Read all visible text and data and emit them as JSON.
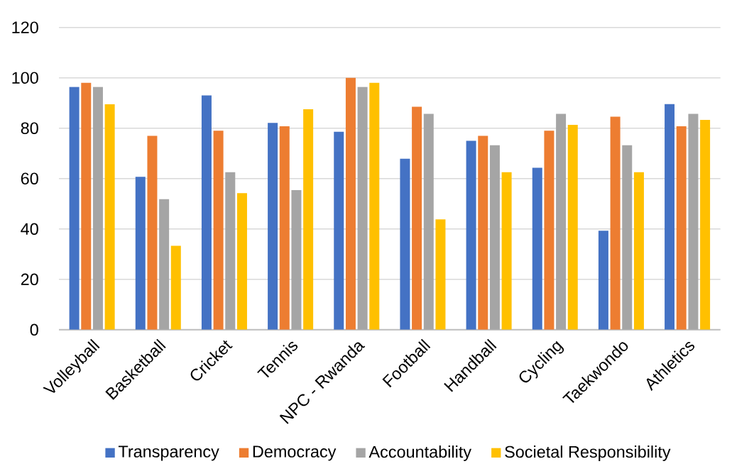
{
  "chart_data": {
    "type": "bar",
    "categories": [
      "Volleyball",
      "Basketball",
      "Cricket",
      "Tennis",
      "NPC - Rwanda",
      "Football",
      "Handball",
      "Cycling",
      "Taekwondo",
      "Athletics"
    ],
    "series": [
      {
        "name": "Transparency",
        "color": "#4472c4",
        "values": [
          96.4,
          60.7,
          93,
          82.1,
          78.6,
          67.9,
          75,
          64.3,
          39.3,
          89.6
        ]
      },
      {
        "name": "Democracy",
        "color": "#ed7d31",
        "values": [
          98,
          77,
          79,
          80.8,
          100,
          88.5,
          77,
          79,
          84.6,
          80.8
        ]
      },
      {
        "name": "Accountability",
        "color": "#a5a5a5",
        "values": [
          96.4,
          51.8,
          62.5,
          55.4,
          96.4,
          85.7,
          73.2,
          85.7,
          73.2,
          85.7
        ]
      },
      {
        "name": "Societal Responsibility",
        "color": "#ffc000",
        "values": [
          89.5,
          33.3,
          54.2,
          87.5,
          98,
          43.8,
          62.5,
          81.3,
          62.5,
          83.3
        ]
      }
    ],
    "ylim": [
      0,
      120
    ],
    "yticks": [
      0,
      20,
      40,
      60,
      80,
      100,
      120
    ],
    "grid": "y",
    "legend": "bottom"
  }
}
